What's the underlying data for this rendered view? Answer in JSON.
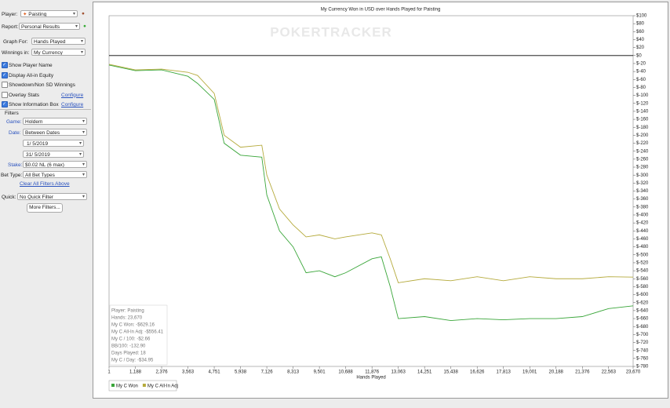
{
  "sidebar": {
    "player": {
      "label": "Player:",
      "value": "Paisting"
    },
    "report": {
      "label": "Report:",
      "value": "Personal Results"
    },
    "graph_for": {
      "label": "Graph For:",
      "value": "Hands Played"
    },
    "winnings_in": {
      "label": "Winnings in:",
      "value": "My Currency"
    },
    "checkboxes": [
      {
        "label": "Show Player Name",
        "checked": true
      },
      {
        "label": "Display All-in Equity",
        "checked": true
      },
      {
        "label": "Showdown/Non SD Winnings",
        "checked": false
      },
      {
        "label": "Overlay Stats",
        "checked": false,
        "link": "Configure"
      },
      {
        "label": "Show Information Box",
        "checked": true,
        "link": "Configure"
      }
    ],
    "filters": {
      "header": "Filters",
      "game": {
        "label": "Game:",
        "value": "Holdem"
      },
      "date": {
        "label": "Date:",
        "value": "Between Dates"
      },
      "date_from": "1/  5/2019",
      "date_to": "31/  5/2019",
      "stake": {
        "label": "Stake:",
        "value": "$0.02 NL (6 max)"
      },
      "bet_type": {
        "label": "Bet Type:",
        "value": "All Bet Types"
      },
      "clear": "Clear All Filters Above",
      "quick": {
        "label": "Quick:",
        "value": "No Quick Filter"
      },
      "more": "More Filters..."
    }
  },
  "chart_data": {
    "type": "line",
    "title": "My Currency Won in USD over Hands Played for Paisting",
    "watermark": "POKERTRACKER",
    "x_label": "Hands Played",
    "xlim": [
      1,
      23670
    ],
    "xticks": [
      1,
      {
        "value": 1188,
        "label": "1,188"
      },
      {
        "value": 2376,
        "label": "2,376"
      },
      {
        "value": 3563,
        "label": "3,563"
      },
      {
        "value": 4751,
        "label": "4,751"
      },
      {
        "value": 5938,
        "label": "5,938"
      },
      {
        "value": 7126,
        "label": "7,126"
      },
      {
        "value": 8313,
        "label": "8,313"
      },
      {
        "value": 9501,
        "label": "9,501"
      },
      {
        "value": 10688,
        "label": "10,688"
      },
      {
        "value": 11876,
        "label": "11,876"
      },
      {
        "value": 13063,
        "label": "13,063"
      },
      {
        "value": 14251,
        "label": "14,251"
      },
      {
        "value": 15438,
        "label": "15,438"
      },
      {
        "value": 16626,
        "label": "16,626"
      },
      {
        "value": 17813,
        "label": "17,813"
      },
      {
        "value": 19001,
        "label": "19,001"
      },
      {
        "value": 20188,
        "label": "20,188"
      },
      {
        "value": 21376,
        "label": "21,376"
      },
      {
        "value": 22563,
        "label": "22,563"
      },
      {
        "value": 23670,
        "label": "23,670"
      }
    ],
    "ylim": [
      -780,
      100
    ],
    "yticks": [
      {
        "value": 100,
        "label": "$100"
      },
      {
        "value": 80,
        "label": "$80"
      },
      {
        "value": 60,
        "label": "$60"
      },
      {
        "value": 40,
        "label": "$40"
      },
      {
        "value": 20,
        "label": "$20"
      },
      {
        "value": 0,
        "label": "$0"
      },
      {
        "value": -20,
        "label": "$-20"
      },
      {
        "value": -40,
        "label": "$-40"
      },
      {
        "value": -60,
        "label": "$-60"
      },
      {
        "value": -80,
        "label": "$-80"
      },
      {
        "value": -100,
        "label": "$-100"
      },
      {
        "value": -120,
        "label": "$-120"
      },
      {
        "value": -140,
        "label": "$-140"
      },
      {
        "value": -160,
        "label": "$-160"
      },
      {
        "value": -180,
        "label": "$-180"
      },
      {
        "value": -200,
        "label": "$-200"
      },
      {
        "value": -220,
        "label": "$-220"
      },
      {
        "value": -240,
        "label": "$-240"
      },
      {
        "value": -260,
        "label": "$-260"
      },
      {
        "value": -280,
        "label": "$-280"
      },
      {
        "value": -300,
        "label": "$-300"
      },
      {
        "value": -320,
        "label": "$-320"
      },
      {
        "value": -340,
        "label": "$-340"
      },
      {
        "value": -360,
        "label": "$-360"
      },
      {
        "value": -380,
        "label": "$-380"
      },
      {
        "value": -400,
        "label": "$-400"
      },
      {
        "value": -420,
        "label": "$-420"
      },
      {
        "value": -440,
        "label": "$-440"
      },
      {
        "value": -460,
        "label": "$-460"
      },
      {
        "value": -480,
        "label": "$-480"
      },
      {
        "value": -500,
        "label": "$-500"
      },
      {
        "value": -520,
        "label": "$-520"
      },
      {
        "value": -540,
        "label": "$-540"
      },
      {
        "value": -560,
        "label": "$-560"
      },
      {
        "value": -580,
        "label": "$-580"
      },
      {
        "value": -600,
        "label": "$-600"
      },
      {
        "value": -620,
        "label": "$-620"
      },
      {
        "value": -640,
        "label": "$-640"
      },
      {
        "value": -660,
        "label": "$-660"
      },
      {
        "value": -680,
        "label": "$-680"
      },
      {
        "value": -700,
        "label": "$-700"
      },
      {
        "value": -720,
        "label": "$-720"
      },
      {
        "value": -740,
        "label": "$-740"
      },
      {
        "value": -760,
        "label": "$-760"
      },
      {
        "value": -780,
        "label": "$-780"
      }
    ],
    "x": [
      1,
      1188,
      2376,
      3563,
      4000,
      4751,
      5200,
      5938,
      6900,
      7126,
      7700,
      8313,
      8900,
      9501,
      10200,
      10688,
      11876,
      12300,
      12700,
      13063,
      14251,
      15438,
      16626,
      17813,
      19001,
      20188,
      21376,
      22563,
      23670
    ],
    "series": [
      {
        "name": "My C Won",
        "color": "#3aa63a",
        "values": [
          -24,
          -38,
          -36,
          -52,
          -70,
          -110,
          -220,
          -250,
          -255,
          -350,
          -440,
          -480,
          -545,
          -540,
          -555,
          -545,
          -510,
          -505,
          -580,
          -660,
          -655,
          -665,
          -660,
          -663,
          -660,
          -660,
          -655,
          -635,
          -628
        ]
      },
      {
        "name": "My C All-In Adj",
        "color": "#b5aa3c",
        "values": [
          -22,
          -36,
          -34,
          -42,
          -50,
          -95,
          -200,
          -230,
          -225,
          -300,
          -385,
          -425,
          -455,
          -450,
          -460,
          -455,
          -445,
          -450,
          -510,
          -570,
          -560,
          -565,
          -555,
          -565,
          -555,
          -560,
          -560,
          -555,
          -556
        ]
      }
    ],
    "info_box": [
      "Player: Paisting",
      "Hands: 23,670",
      "My C Won: -$629.16",
      "My C All-In Adj: -$556.41",
      "My C / 100: -$2.66",
      "BB/100: -132.90",
      "Days Played: 18",
      "My C / Day: -$34.95"
    ]
  }
}
